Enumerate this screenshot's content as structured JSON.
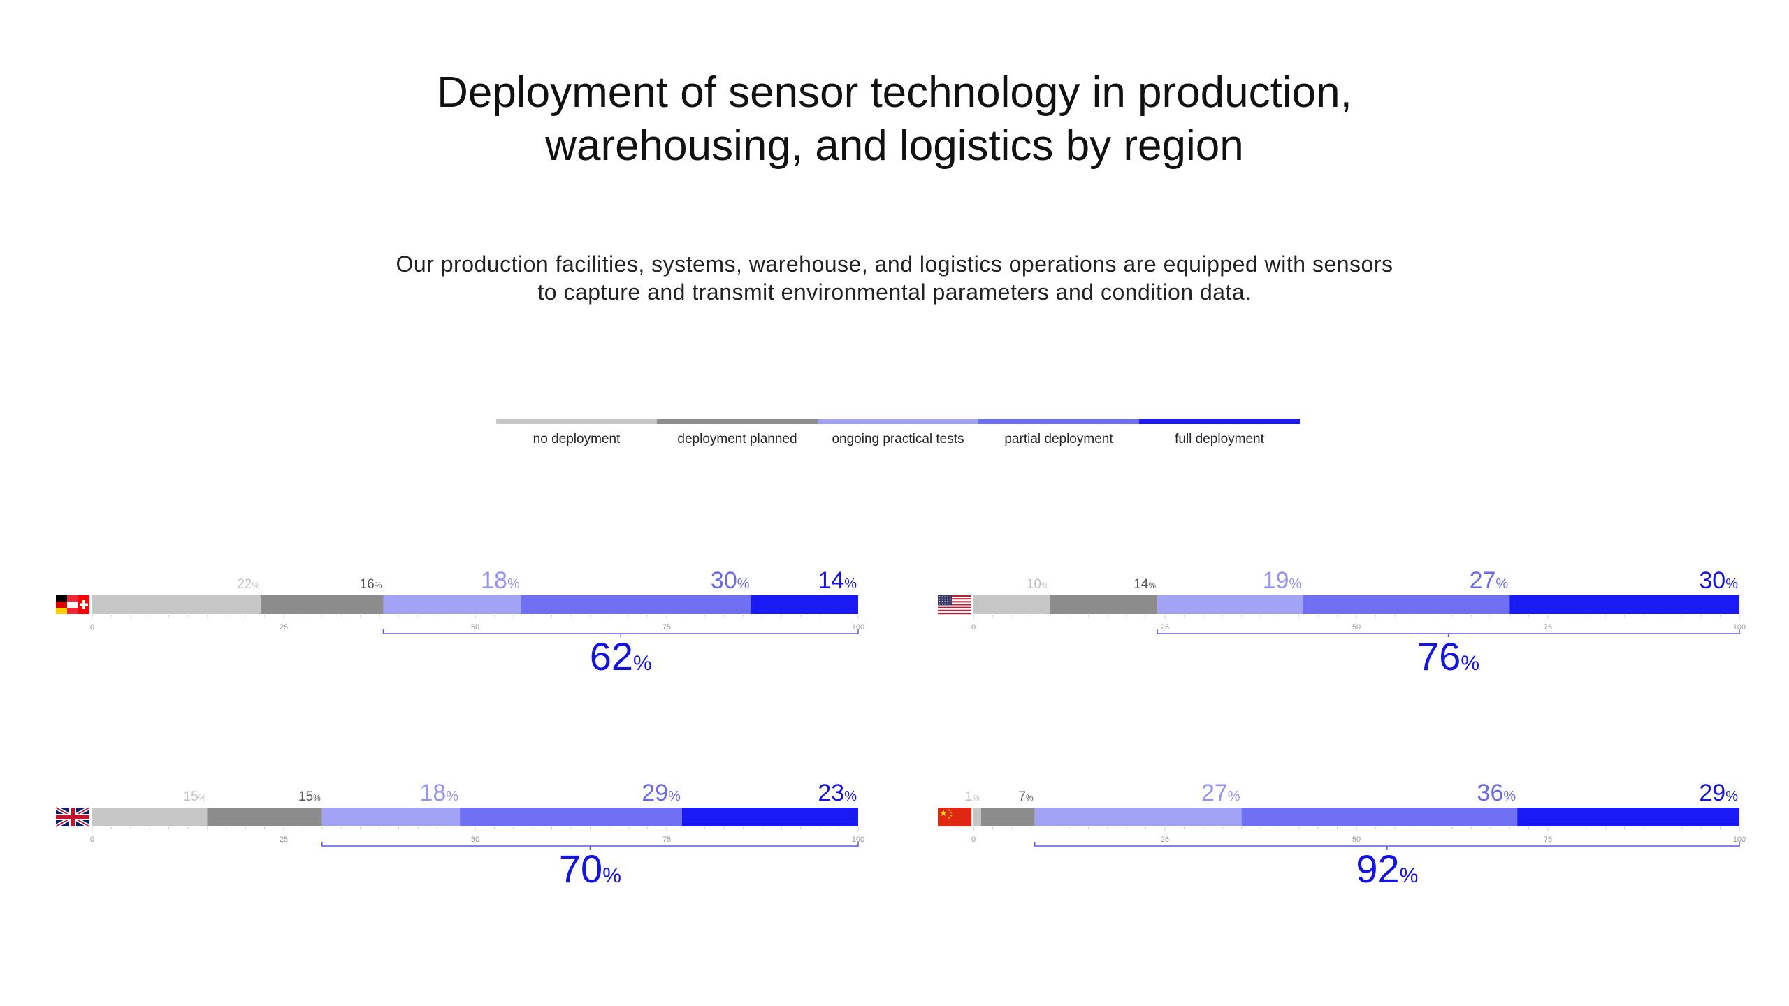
{
  "title": {
    "line1": "Deployment of sensor technology in production,",
    "line2": "warehousing, and logistics by region"
  },
  "subtitle": {
    "line1": "Our production facilities, systems, warehouse, and logistics operations are equipped with sensors",
    "line2": "to capture and transmit environmental parameters and condition data."
  },
  "legend": [
    {
      "label": "no deployment",
      "color": "#c6c6c6"
    },
    {
      "label": "deployment planned",
      "color": "#8c8c8c"
    },
    {
      "label": "ongoing practical tests",
      "color": "#a3a3f5"
    },
    {
      "label": "partial deployment",
      "color": "#7070f5"
    },
    {
      "label": "full deployment",
      "color": "#1a1af5"
    }
  ],
  "label_colors": [
    "#c2c2c2",
    "#555555",
    "#9494f0",
    "#6a6ae8",
    "#1414e0"
  ],
  "bracket_color": "#5a5ae0",
  "total_color": "#1414e0",
  "chart_data": {
    "type": "bar",
    "orientation": "horizontal",
    "stacked": true,
    "xlim": [
      0,
      100
    ],
    "ticks": [
      0,
      25,
      50,
      75,
      100
    ],
    "percent_symbol": "%",
    "categories": [
      "no deployment",
      "deployment planned",
      "ongoing practical tests",
      "partial deployment",
      "full deployment"
    ],
    "regions": [
      {
        "flag": "de-at-ch",
        "values": [
          22,
          16,
          18,
          30,
          14
        ],
        "total": 62
      },
      {
        "flag": "us",
        "values": [
          10,
          14,
          19,
          27,
          30
        ],
        "total": 76
      },
      {
        "flag": "uk",
        "values": [
          15,
          15,
          18,
          29,
          23
        ],
        "total": 70
      },
      {
        "flag": "cn",
        "values": [
          1,
          7,
          27,
          36,
          29
        ],
        "total": 92
      }
    ]
  }
}
